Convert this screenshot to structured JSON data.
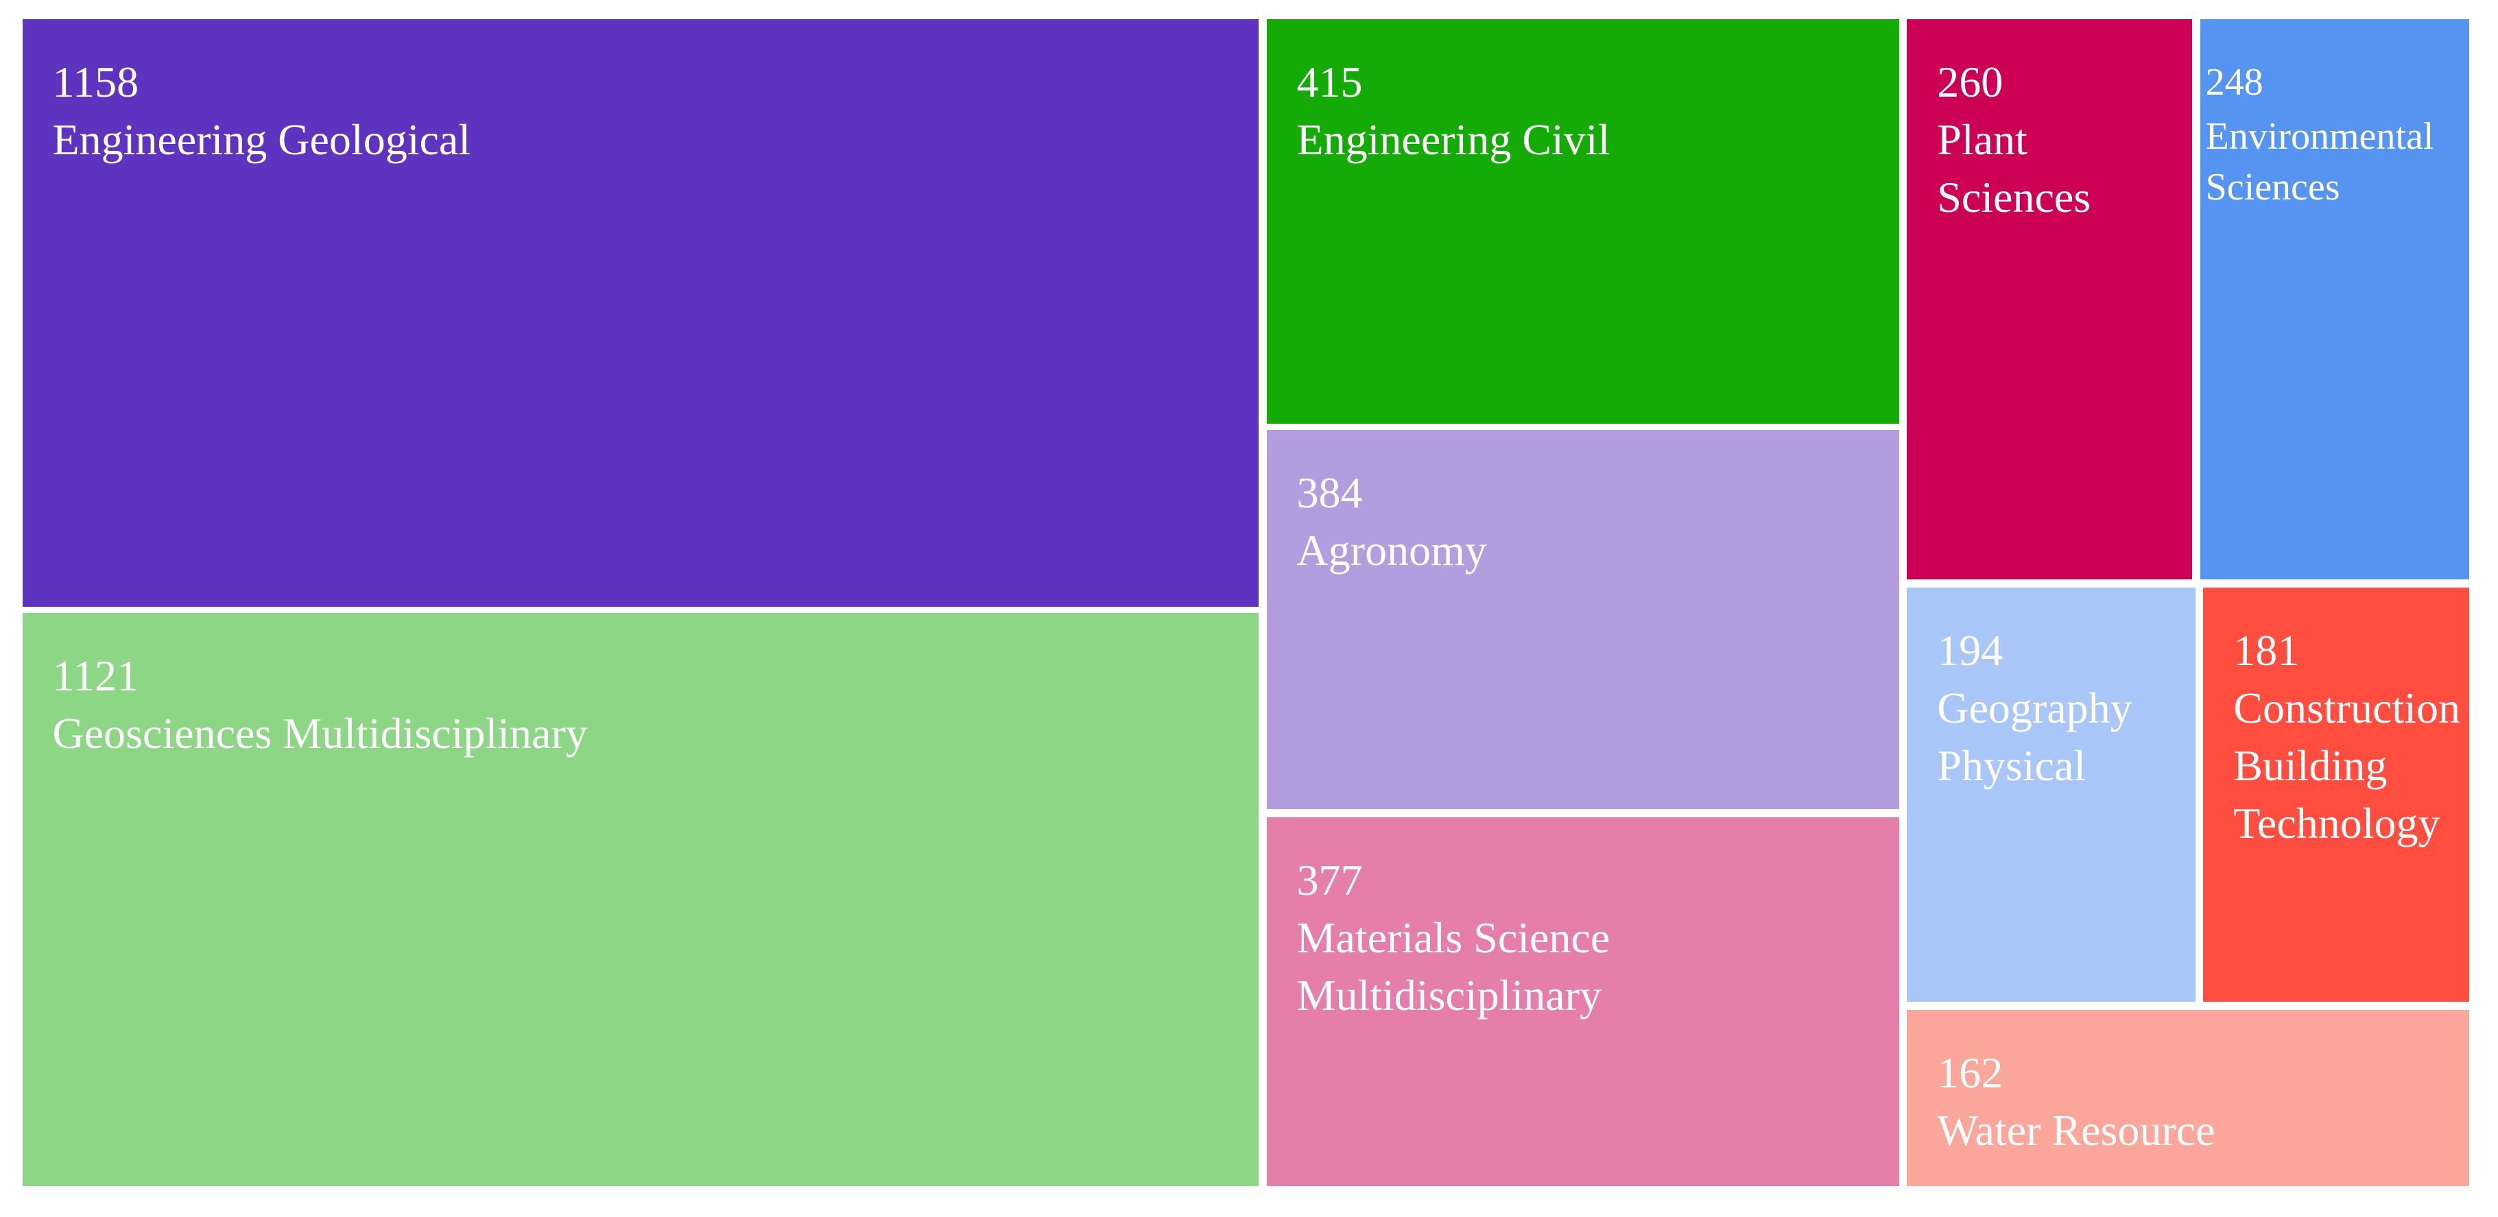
{
  "chart_data": {
    "type": "treemap",
    "categories": [
      "Engineering Geological",
      "Geosciences Multidisciplinary",
      "Engineering Civil",
      "Agronomy",
      "Materials Science Multidisciplinary",
      "Plant Sciences",
      "Environmental Sciences",
      "Geography Physical",
      "Construction Building Technology",
      "Water Resource"
    ],
    "values": [
      1158,
      1121,
      415,
      384,
      377,
      260,
      248,
      194,
      181,
      162
    ],
    "colors": [
      "#5e33bf",
      "#8dd685",
      "#14ab06",
      "#b39ddf",
      "#e57eab",
      "#cc0055",
      "#5694f2",
      "#a8c6f8",
      "#ff4e40",
      "#fba69a"
    ]
  }
}
